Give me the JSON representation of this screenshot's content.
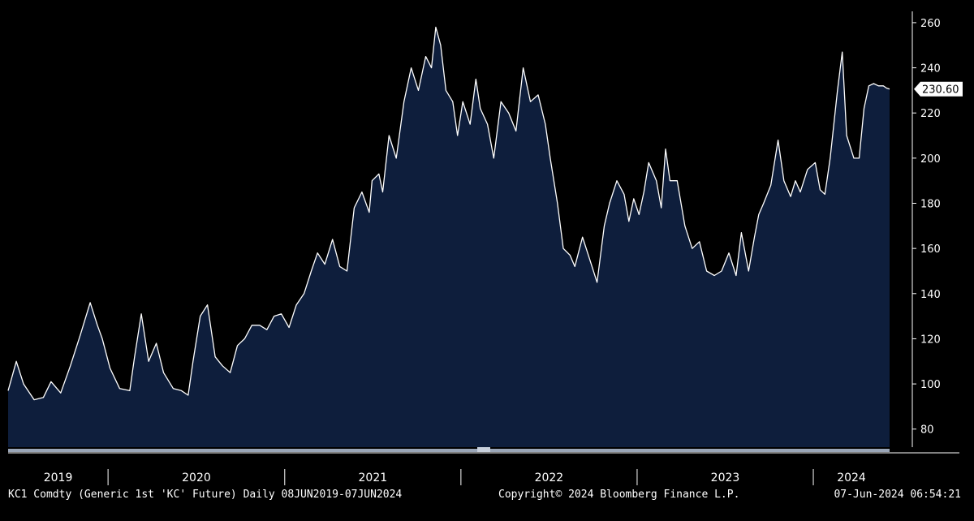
{
  "footer": {
    "left": "KC1 Comdty (Generic 1st 'KC' Future)  Daily 08JUN2019-07JUN2024",
    "center": "Copyright© 2024 Bloomberg Finance L.P.",
    "right": "07-Jun-2024 06:54:21"
  },
  "colors": {
    "background": "#000000",
    "area_fill": "#0e1e3c",
    "line": "#ffffff",
    "axis_text": "#ffffff"
  },
  "chart_data": {
    "type": "area",
    "title": "",
    "xlabel": "",
    "ylabel": "",
    "x_range": [
      "2019-06-08",
      "2024-06-07"
    ],
    "ylim": [
      72,
      265
    ],
    "yticks": [
      80,
      100,
      120,
      140,
      160,
      180,
      200,
      220,
      240,
      260
    ],
    "year_labels": [
      "2019",
      "2020",
      "2021",
      "2022",
      "2023",
      "2024"
    ],
    "last_value_label": "230.60",
    "grid": false,
    "legend": "none",
    "series": [
      {
        "x": [
          "2019-06-08",
          "2019-06-25",
          "2019-07-10",
          "2019-08-01",
          "2019-08-20",
          "2019-09-05",
          "2019-09-25",
          "2019-10-15",
          "2019-11-05",
          "2019-11-25",
          "2019-12-10",
          "2019-12-20",
          "2020-01-05",
          "2020-01-25",
          "2020-02-15",
          "2020-02-25",
          "2020-03-10",
          "2020-03-25",
          "2020-04-10",
          "2020-04-25",
          "2020-05-15",
          "2020-06-01",
          "2020-06-15",
          "2020-06-25",
          "2020-07-10",
          "2020-07-25",
          "2020-08-10",
          "2020-08-25",
          "2020-09-10",
          "2020-09-25",
          "2020-10-10",
          "2020-10-25",
          "2020-11-10",
          "2020-11-25",
          "2020-12-10",
          "2020-12-25",
          "2021-01-10",
          "2021-01-25",
          "2021-02-10",
          "2021-02-25",
          "2021-03-10",
          "2021-03-25",
          "2021-04-10",
          "2021-04-25",
          "2021-05-10",
          "2021-05-25",
          "2021-06-10",
          "2021-06-25",
          "2021-07-01",
          "2021-07-15",
          "2021-07-23",
          "2021-08-05",
          "2021-08-20",
          "2021-09-05",
          "2021-09-20",
          "2021-10-05",
          "2021-10-20",
          "2021-11-01",
          "2021-11-10",
          "2021-11-20",
          "2021-12-01",
          "2021-12-15",
          "2021-12-25",
          "2022-01-05",
          "2022-01-20",
          "2022-02-01",
          "2022-02-10",
          "2022-02-25",
          "2022-03-10",
          "2022-03-25",
          "2022-04-10",
          "2022-04-25",
          "2022-05-10",
          "2022-05-25",
          "2022-06-10",
          "2022-06-25",
          "2022-07-05",
          "2022-07-20",
          "2022-08-01",
          "2022-08-15",
          "2022-08-25",
          "2022-09-10",
          "2022-09-25",
          "2022-10-10",
          "2022-10-25",
          "2022-11-05",
          "2022-11-20",
          "2022-12-05",
          "2022-12-15",
          "2022-12-25",
          "2023-01-05",
          "2023-01-15",
          "2023-01-25",
          "2023-02-10",
          "2023-02-20",
          "2023-03-01",
          "2023-03-10",
          "2023-03-25",
          "2023-04-10",
          "2023-04-25",
          "2023-05-10",
          "2023-05-25",
          "2023-06-10",
          "2023-06-25",
          "2023-07-10",
          "2023-07-25",
          "2023-08-05",
          "2023-08-20",
          "2023-09-01",
          "2023-09-10",
          "2023-09-20",
          "2023-10-05",
          "2023-10-20",
          "2023-11-01",
          "2023-11-15",
          "2023-11-25",
          "2023-12-05",
          "2023-12-20",
          "2024-01-05",
          "2024-01-15",
          "2024-01-25",
          "2024-02-05",
          "2024-02-20",
          "2024-03-01",
          "2024-03-10",
          "2024-03-25",
          "2024-04-05",
          "2024-04-15",
          "2024-04-25",
          "2024-05-05",
          "2024-05-15",
          "2024-05-25",
          "2024-06-01",
          "2024-06-07"
        ],
        "values": [
          97,
          110,
          100,
          93,
          94,
          101,
          96,
          108,
          122,
          136,
          126,
          120,
          107,
          98,
          97,
          112,
          131,
          110,
          118,
          105,
          98,
          97,
          95,
          110,
          130,
          135,
          112,
          108,
          105,
          117,
          120,
          126,
          126,
          124,
          130,
          131,
          125,
          135,
          140,
          150,
          158,
          153,
          164,
          152,
          150,
          178,
          185,
          176,
          190,
          193,
          185,
          210,
          200,
          225,
          240,
          230,
          245,
          240,
          258,
          250,
          230,
          225,
          210,
          225,
          215,
          235,
          222,
          215,
          200,
          225,
          220,
          212,
          240,
          225,
          228,
          215,
          200,
          180,
          160,
          157,
          152,
          165,
          155,
          145,
          170,
          180,
          190,
          184,
          172,
          182,
          175,
          185,
          198,
          190,
          178,
          204,
          190,
          190,
          170,
          160,
          163,
          150,
          148,
          150,
          158,
          148,
          167,
          150,
          165,
          175,
          180,
          188,
          208,
          190,
          183,
          190,
          185,
          195,
          198,
          186,
          184,
          200,
          230,
          247,
          210,
          200,
          200,
          222,
          232,
          233,
          232,
          232,
          231,
          230.6
        ]
      }
    ]
  }
}
